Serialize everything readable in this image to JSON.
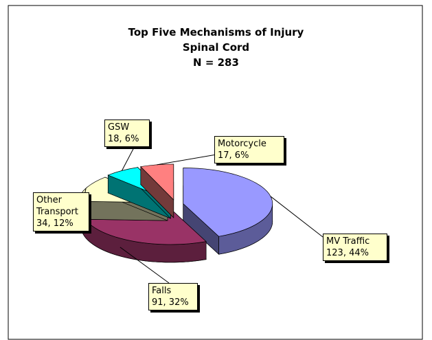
{
  "chart_data": {
    "type": "pie3d",
    "title": "Top Five Mechanisms of Injury",
    "subtitle": "Spinal Cord",
    "annotation": "N = 283",
    "categories": [
      "MV Traffic",
      "Falls",
      "Other Transport",
      "GSW",
      "Motorcycle"
    ],
    "values": [
      123,
      91,
      34,
      18,
      17
    ],
    "value_labels": [
      "123, 44%",
      "91, 32%",
      "34, 12%",
      "18, 6%",
      "17, 6%"
    ],
    "colors": [
      "#9999ff",
      "#993366",
      "#ffffcc",
      "#00ffff",
      "#ff8080"
    ]
  }
}
